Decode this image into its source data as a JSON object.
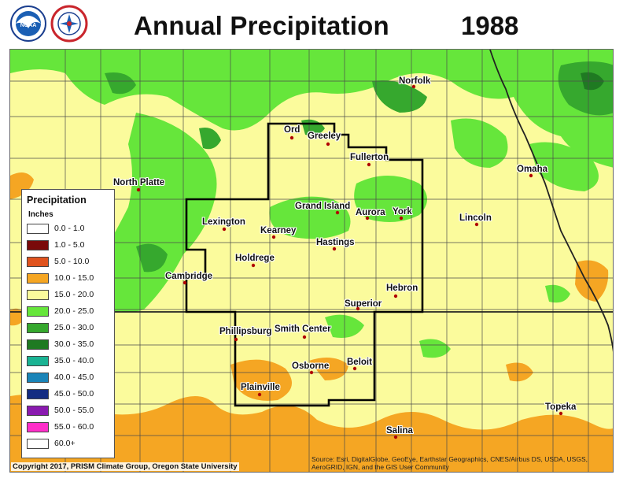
{
  "header": {
    "title": "Annual Precipitation",
    "year": "1988"
  },
  "logos": [
    "noaa-logo",
    "national-weather-service-logo"
  ],
  "map": {
    "cities": [
      {
        "name": "Norfolk"
      },
      {
        "name": "Ord"
      },
      {
        "name": "Greeley"
      },
      {
        "name": "Fullerton"
      },
      {
        "name": "Omaha"
      },
      {
        "name": "North Platte"
      },
      {
        "name": "Grand Island"
      },
      {
        "name": "Aurora"
      },
      {
        "name": "York"
      },
      {
        "name": "Lincoln"
      },
      {
        "name": "Lexington"
      },
      {
        "name": "Kearney"
      },
      {
        "name": "Hastings"
      },
      {
        "name": "Holdrege"
      },
      {
        "name": "Cambridge"
      },
      {
        "name": "Hebron"
      },
      {
        "name": "Superior"
      },
      {
        "name": "Phillipsburg"
      },
      {
        "name": "Smith Center"
      },
      {
        "name": "Beloit"
      },
      {
        "name": "Osborne"
      },
      {
        "name": "Plainville"
      },
      {
        "name": "Topeka"
      },
      {
        "name": "Salina"
      }
    ]
  },
  "legend": {
    "title": "Precipitation",
    "units": "Inches",
    "items": [
      {
        "label": "0.0 - 1.0",
        "color": "#ffffff"
      },
      {
        "label": "1.0 - 5.0",
        "color": "#7a0a0a"
      },
      {
        "label": "5.0 - 10.0",
        "color": "#e0531e"
      },
      {
        "label": "10.0 - 15.0",
        "color": "#f5a623"
      },
      {
        "label": "15.0 - 20.0",
        "color": "#fbfb9c"
      },
      {
        "label": "20.0 - 25.0",
        "color": "#66e63b"
      },
      {
        "label": "25.0 - 30.0",
        "color": "#36a82e"
      },
      {
        "label": "30.0 - 35.0",
        "color": "#1f7a22"
      },
      {
        "label": "35.0 - 40.0",
        "color": "#1ab393"
      },
      {
        "label": "40.0 - 45.0",
        "color": "#1a84b8"
      },
      {
        "label": "45.0 - 50.0",
        "color": "#142c82"
      },
      {
        "label": "50.0 - 55.0",
        "color": "#8a1ab0"
      },
      {
        "label": "55.0 - 60.0",
        "color": "#ff2ec9"
      },
      {
        "label": "60.0+",
        "color": "#ffffff"
      }
    ]
  },
  "footer": {
    "copyright": "Copyright 2017, PRISM Climate Group, Oregon State University",
    "source": "Source: Esri, DigitalGlobe, GeoEye, Earthstar Geographics, CNES/Airbus DS, USDA, USGS, AeroGRID, IGN, and the GIS User Community"
  }
}
